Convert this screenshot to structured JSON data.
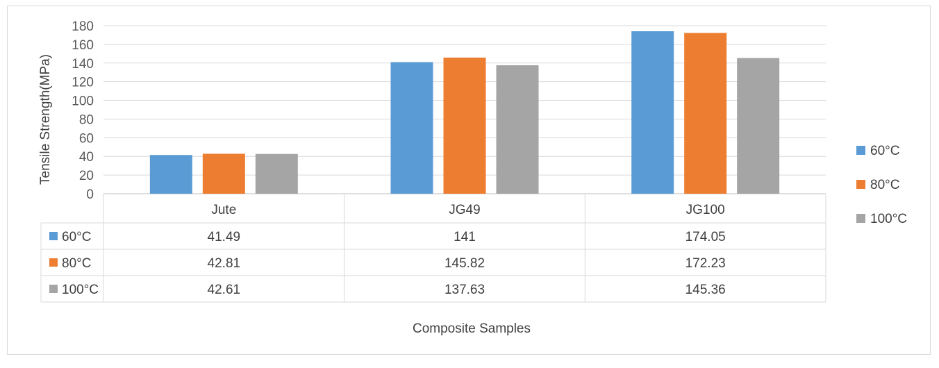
{
  "chart_data": {
    "type": "bar",
    "title": "",
    "xlabel": "Composite Samples",
    "ylabel": "Tensile Strength(MPa)",
    "ylim": [
      0,
      180
    ],
    "yticks": [
      0,
      20,
      40,
      60,
      80,
      100,
      120,
      140,
      160,
      180
    ],
    "grid": true,
    "legend_position": "right",
    "data_table": true,
    "categories": [
      "Jute",
      "JG49",
      "JG100"
    ],
    "series": [
      {
        "name": "60°C",
        "color": "#5b9bd5",
        "values": [
          41.49,
          141,
          174.05
        ],
        "labels": [
          "41.49",
          "141",
          "174.05"
        ]
      },
      {
        "name": "80°C",
        "color": "#ed7d31",
        "values": [
          42.81,
          145.82,
          172.23
        ],
        "labels": [
          "42.81",
          "145.82",
          "172.23"
        ]
      },
      {
        "name": "100°C",
        "color": "#a5a5a5",
        "values": [
          42.61,
          137.63,
          145.36
        ],
        "labels": [
          "42.61",
          "137.63",
          "145.36"
        ]
      }
    ]
  }
}
